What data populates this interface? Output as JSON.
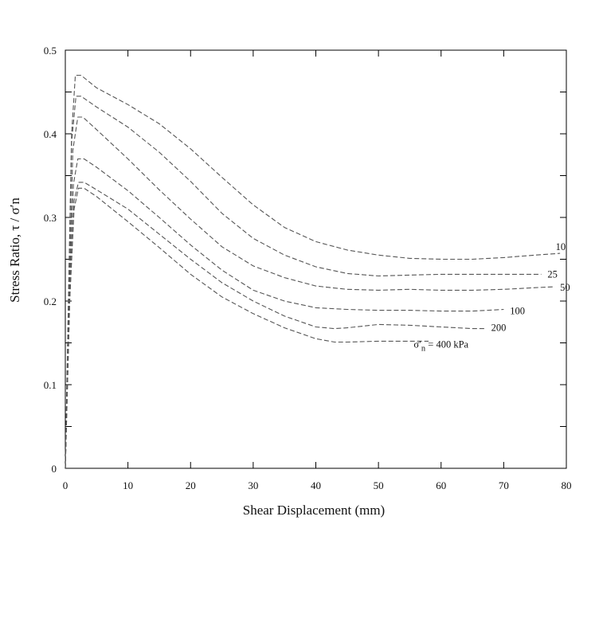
{
  "chart_data": {
    "type": "line",
    "title": "",
    "xlabel": "Shear Displacement (mm)",
    "ylabel": "Stress Ratio, τ / σ′n",
    "xlim": [
      0,
      80
    ],
    "ylim": [
      0,
      0.5
    ],
    "x_ticks": [
      "0",
      "10",
      "20",
      "30",
      "40",
      "50",
      "60",
      "70",
      "80"
    ],
    "y_ticks": [
      "0",
      "0.1",
      "0.2",
      "0.3",
      "0.4",
      "0.5"
    ],
    "grid": false,
    "line_style": "dashed",
    "line_color": "#555555",
    "series": [
      {
        "name": "10",
        "points": [
          [
            0,
            0
          ],
          [
            0.5,
            0.2
          ],
          [
            1.0,
            0.4
          ],
          [
            1.6,
            0.47
          ],
          [
            2.5,
            0.47
          ],
          [
            5,
            0.455
          ],
          [
            10,
            0.435
          ],
          [
            15,
            0.412
          ],
          [
            20,
            0.382
          ],
          [
            25,
            0.348
          ],
          [
            30,
            0.315
          ],
          [
            35,
            0.288
          ],
          [
            40,
            0.271
          ],
          [
            45,
            0.261
          ],
          [
            50,
            0.255
          ],
          [
            55,
            0.251
          ],
          [
            60,
            0.25
          ],
          [
            65,
            0.25
          ],
          [
            70,
            0.252
          ],
          [
            75,
            0.255
          ],
          [
            79,
            0.257
          ]
        ]
      },
      {
        "name": "25",
        "points": [
          [
            0,
            0
          ],
          [
            0.5,
            0.2
          ],
          [
            1.0,
            0.39
          ],
          [
            1.7,
            0.445
          ],
          [
            2.5,
            0.445
          ],
          [
            5,
            0.432
          ],
          [
            10,
            0.408
          ],
          [
            15,
            0.378
          ],
          [
            20,
            0.343
          ],
          [
            25,
            0.305
          ],
          [
            30,
            0.275
          ],
          [
            35,
            0.255
          ],
          [
            40,
            0.241
          ],
          [
            45,
            0.233
          ],
          [
            50,
            0.23
          ],
          [
            55,
            0.231
          ],
          [
            60,
            0.232
          ],
          [
            65,
            0.232
          ],
          [
            70,
            0.232
          ],
          [
            75,
            0.232
          ],
          [
            76,
            0.232
          ]
        ]
      },
      {
        "name": "50",
        "points": [
          [
            0,
            0
          ],
          [
            0.6,
            0.2
          ],
          [
            1.2,
            0.38
          ],
          [
            2.0,
            0.42
          ],
          [
            2.8,
            0.42
          ],
          [
            5,
            0.405
          ],
          [
            10,
            0.37
          ],
          [
            15,
            0.333
          ],
          [
            20,
            0.298
          ],
          [
            25,
            0.265
          ],
          [
            30,
            0.242
          ],
          [
            35,
            0.228
          ],
          [
            40,
            0.218
          ],
          [
            45,
            0.214
          ],
          [
            50,
            0.213
          ],
          [
            55,
            0.214
          ],
          [
            60,
            0.213
          ],
          [
            65,
            0.213
          ],
          [
            70,
            0.214
          ],
          [
            75,
            0.216
          ],
          [
            78,
            0.217
          ]
        ]
      },
      {
        "name": "100",
        "points": [
          [
            0,
            0
          ],
          [
            0.6,
            0.2
          ],
          [
            1.3,
            0.34
          ],
          [
            2.0,
            0.37
          ],
          [
            3.0,
            0.37
          ],
          [
            5,
            0.36
          ],
          [
            10,
            0.332
          ],
          [
            15,
            0.3
          ],
          [
            20,
            0.267
          ],
          [
            25,
            0.237
          ],
          [
            30,
            0.213
          ],
          [
            35,
            0.2
          ],
          [
            40,
            0.192
          ],
          [
            45,
            0.19
          ],
          [
            50,
            0.189
          ],
          [
            55,
            0.189
          ],
          [
            60,
            0.188
          ],
          [
            65,
            0.188
          ],
          [
            70,
            0.19
          ]
        ]
      },
      {
        "name": "200",
        "points": [
          [
            0,
            0
          ],
          [
            0.7,
            0.2
          ],
          [
            1.4,
            0.32
          ],
          [
            2.1,
            0.342
          ],
          [
            3.0,
            0.342
          ],
          [
            5,
            0.333
          ],
          [
            10,
            0.31
          ],
          [
            15,
            0.28
          ],
          [
            20,
            0.25
          ],
          [
            25,
            0.222
          ],
          [
            30,
            0.2
          ],
          [
            35,
            0.182
          ],
          [
            40,
            0.169
          ],
          [
            43,
            0.167
          ],
          [
            45,
            0.168
          ],
          [
            50,
            0.172
          ],
          [
            55,
            0.171
          ],
          [
            60,
            0.169
          ],
          [
            65,
            0.167
          ],
          [
            67,
            0.167
          ]
        ]
      },
      {
        "name": "σ′n = 400 kPa",
        "points": [
          [
            0,
            0
          ],
          [
            0.7,
            0.2
          ],
          [
            1.4,
            0.31
          ],
          [
            2.1,
            0.335
          ],
          [
            3.0,
            0.335
          ],
          [
            5,
            0.325
          ],
          [
            10,
            0.295
          ],
          [
            15,
            0.264
          ],
          [
            20,
            0.232
          ],
          [
            25,
            0.205
          ],
          [
            30,
            0.185
          ],
          [
            35,
            0.168
          ],
          [
            40,
            0.155
          ],
          [
            43,
            0.151
          ],
          [
            45,
            0.151
          ],
          [
            50,
            0.152
          ],
          [
            55,
            0.152
          ],
          [
            58,
            0.152
          ]
        ]
      }
    ],
    "series_labels": [
      {
        "text": "10",
        "at": [
          78.3,
          0.265
        ]
      },
      {
        "text": "25",
        "at": [
          77.0,
          0.232
        ]
      },
      {
        "text": "50",
        "at": [
          79.0,
          0.216
        ]
      },
      {
        "text": "100",
        "at": [
          71.0,
          0.188
        ]
      },
      {
        "text": "200",
        "at": [
          68.0,
          0.168
        ]
      }
    ],
    "sigma_label": {
      "sigma": "σ′",
      "sub": "n",
      "rest": " = 400 kPa",
      "at": [
        60.0,
        0.148
      ]
    }
  }
}
